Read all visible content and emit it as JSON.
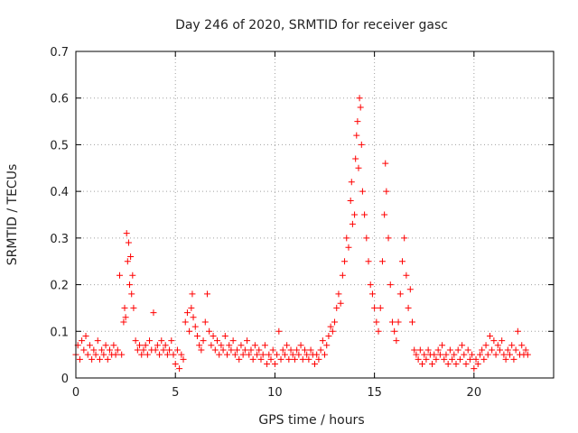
{
  "chart_data": {
    "type": "scatter",
    "title": "Day 246 of 2020, SRMTID for receiver gasc",
    "xlabel": "GPS time / hours",
    "ylabel": "SRMTID / TECUs",
    "xlim": [
      0,
      24
    ],
    "ylim": [
      0,
      0.7
    ],
    "xticks": [
      0,
      5,
      10,
      15,
      20
    ],
    "yticks": [
      0,
      0.1,
      0.2,
      0.3,
      0.4,
      0.5,
      0.6,
      0.7
    ],
    "xtick_labels": [
      "0",
      "5",
      "10",
      "15",
      "20"
    ],
    "ytick_labels": [
      "0",
      "0.1",
      "0.2",
      "0.3",
      "0.4",
      "0.5",
      "0.6",
      "0.7"
    ],
    "grid": true,
    "marker": "+",
    "color": "#ff0000",
    "series": [
      {
        "name": "SRMTID",
        "points": [
          [
            0.0,
            0.05
          ],
          [
            0.1,
            0.07
          ],
          [
            0.2,
            0.04
          ],
          [
            0.3,
            0.08
          ],
          [
            0.4,
            0.06
          ],
          [
            0.5,
            0.09
          ],
          [
            0.6,
            0.05
          ],
          [
            0.7,
            0.07
          ],
          [
            0.8,
            0.04
          ],
          [
            0.9,
            0.06
          ],
          [
            1.0,
            0.05
          ],
          [
            1.1,
            0.08
          ],
          [
            1.2,
            0.04
          ],
          [
            1.3,
            0.06
          ],
          [
            1.4,
            0.05
          ],
          [
            1.5,
            0.07
          ],
          [
            1.6,
            0.04
          ],
          [
            1.7,
            0.06
          ],
          [
            1.8,
            0.05
          ],
          [
            1.9,
            0.07
          ],
          [
            2.0,
            0.05
          ],
          [
            2.1,
            0.06
          ],
          [
            2.2,
            0.22
          ],
          [
            2.3,
            0.05
          ],
          [
            2.4,
            0.12
          ],
          [
            2.45,
            0.15
          ],
          [
            2.5,
            0.13
          ],
          [
            2.55,
            0.31
          ],
          [
            2.6,
            0.25
          ],
          [
            2.65,
            0.29
          ],
          [
            2.7,
            0.2
          ],
          [
            2.75,
            0.26
          ],
          [
            2.8,
            0.18
          ],
          [
            2.85,
            0.22
          ],
          [
            2.9,
            0.15
          ],
          [
            3.0,
            0.08
          ],
          [
            3.1,
            0.06
          ],
          [
            3.2,
            0.07
          ],
          [
            3.3,
            0.05
          ],
          [
            3.4,
            0.06
          ],
          [
            3.5,
            0.07
          ],
          [
            3.6,
            0.05
          ],
          [
            3.7,
            0.08
          ],
          [
            3.8,
            0.06
          ],
          [
            3.9,
            0.14
          ],
          [
            4.0,
            0.06
          ],
          [
            4.1,
            0.07
          ],
          [
            4.2,
            0.05
          ],
          [
            4.3,
            0.08
          ],
          [
            4.4,
            0.06
          ],
          [
            4.5,
            0.07
          ],
          [
            4.6,
            0.05
          ],
          [
            4.7,
            0.06
          ],
          [
            4.8,
            0.08
          ],
          [
            4.9,
            0.05
          ],
          [
            5.0,
            0.03
          ],
          [
            5.1,
            0.06
          ],
          [
            5.2,
            0.02
          ],
          [
            5.3,
            0.05
          ],
          [
            5.4,
            0.04
          ],
          [
            5.5,
            0.12
          ],
          [
            5.6,
            0.14
          ],
          [
            5.7,
            0.1
          ],
          [
            5.8,
            0.15
          ],
          [
            5.85,
            0.18
          ],
          [
            5.9,
            0.13
          ],
          [
            6.0,
            0.11
          ],
          [
            6.1,
            0.09
          ],
          [
            6.2,
            0.07
          ],
          [
            6.3,
            0.06
          ],
          [
            6.4,
            0.08
          ],
          [
            6.5,
            0.12
          ],
          [
            6.6,
            0.18
          ],
          [
            6.7,
            0.1
          ],
          [
            6.8,
            0.07
          ],
          [
            6.9,
            0.09
          ],
          [
            7.0,
            0.06
          ],
          [
            7.1,
            0.08
          ],
          [
            7.2,
            0.05
          ],
          [
            7.3,
            0.07
          ],
          [
            7.4,
            0.06
          ],
          [
            7.5,
            0.09
          ],
          [
            7.6,
            0.05
          ],
          [
            7.7,
            0.07
          ],
          [
            7.8,
            0.06
          ],
          [
            7.9,
            0.08
          ],
          [
            8.0,
            0.05
          ],
          [
            8.1,
            0.06
          ],
          [
            8.2,
            0.04
          ],
          [
            8.3,
            0.07
          ],
          [
            8.4,
            0.05
          ],
          [
            8.5,
            0.06
          ],
          [
            8.6,
            0.08
          ],
          [
            8.7,
            0.05
          ],
          [
            8.8,
            0.06
          ],
          [
            8.9,
            0.04
          ],
          [
            9.0,
            0.07
          ],
          [
            9.1,
            0.05
          ],
          [
            9.2,
            0.06
          ],
          [
            9.3,
            0.04
          ],
          [
            9.4,
            0.05
          ],
          [
            9.5,
            0.07
          ],
          [
            9.6,
            0.03
          ],
          [
            9.7,
            0.05
          ],
          [
            9.8,
            0.04
          ],
          [
            9.9,
            0.06
          ],
          [
            10.0,
            0.03
          ],
          [
            10.1,
            0.05
          ],
          [
            10.2,
            0.1
          ],
          [
            10.3,
            0.04
          ],
          [
            10.4,
            0.06
          ],
          [
            10.5,
            0.05
          ],
          [
            10.6,
            0.07
          ],
          [
            10.7,
            0.04
          ],
          [
            10.8,
            0.06
          ],
          [
            10.9,
            0.05
          ],
          [
            11.0,
            0.04
          ],
          [
            11.1,
            0.06
          ],
          [
            11.2,
            0.05
          ],
          [
            11.3,
            0.07
          ],
          [
            11.4,
            0.04
          ],
          [
            11.5,
            0.06
          ],
          [
            11.6,
            0.05
          ],
          [
            11.7,
            0.04
          ],
          [
            11.8,
            0.06
          ],
          [
            11.9,
            0.05
          ],
          [
            12.0,
            0.03
          ],
          [
            12.1,
            0.05
          ],
          [
            12.2,
            0.04
          ],
          [
            12.3,
            0.06
          ],
          [
            12.4,
            0.08
          ],
          [
            12.5,
            0.05
          ],
          [
            12.6,
            0.07
          ],
          [
            12.7,
            0.09
          ],
          [
            12.8,
            0.11
          ],
          [
            12.9,
            0.1
          ],
          [
            13.0,
            0.12
          ],
          [
            13.1,
            0.15
          ],
          [
            13.2,
            0.18
          ],
          [
            13.3,
            0.16
          ],
          [
            13.4,
            0.22
          ],
          [
            13.5,
            0.25
          ],
          [
            13.6,
            0.3
          ],
          [
            13.7,
            0.28
          ],
          [
            13.8,
            0.38
          ],
          [
            13.85,
            0.42
          ],
          [
            13.9,
            0.33
          ],
          [
            14.0,
            0.35
          ],
          [
            14.05,
            0.47
          ],
          [
            14.1,
            0.52
          ],
          [
            14.15,
            0.55
          ],
          [
            14.2,
            0.45
          ],
          [
            14.25,
            0.6
          ],
          [
            14.3,
            0.58
          ],
          [
            14.35,
            0.5
          ],
          [
            14.4,
            0.4
          ],
          [
            14.5,
            0.35
          ],
          [
            14.6,
            0.3
          ],
          [
            14.7,
            0.25
          ],
          [
            14.8,
            0.2
          ],
          [
            14.9,
            0.18
          ],
          [
            15.0,
            0.15
          ],
          [
            15.1,
            0.12
          ],
          [
            15.2,
            0.1
          ],
          [
            15.3,
            0.15
          ],
          [
            15.4,
            0.25
          ],
          [
            15.5,
            0.35
          ],
          [
            15.55,
            0.46
          ],
          [
            15.6,
            0.4
          ],
          [
            15.7,
            0.3
          ],
          [
            15.8,
            0.2
          ],
          [
            15.9,
            0.12
          ],
          [
            16.0,
            0.1
          ],
          [
            16.1,
            0.08
          ],
          [
            16.2,
            0.12
          ],
          [
            16.3,
            0.18
          ],
          [
            16.4,
            0.25
          ],
          [
            16.5,
            0.3
          ],
          [
            16.6,
            0.22
          ],
          [
            16.7,
            0.15
          ],
          [
            16.8,
            0.19
          ],
          [
            16.9,
            0.12
          ],
          [
            17.0,
            0.06
          ],
          [
            17.1,
            0.05
          ],
          [
            17.2,
            0.04
          ],
          [
            17.3,
            0.06
          ],
          [
            17.4,
            0.03
          ],
          [
            17.5,
            0.05
          ],
          [
            17.6,
            0.04
          ],
          [
            17.7,
            0.06
          ],
          [
            17.8,
            0.05
          ],
          [
            17.9,
            0.03
          ],
          [
            18.0,
            0.05
          ],
          [
            18.1,
            0.04
          ],
          [
            18.2,
            0.06
          ],
          [
            18.3,
            0.05
          ],
          [
            18.4,
            0.07
          ],
          [
            18.5,
            0.04
          ],
          [
            18.6,
            0.05
          ],
          [
            18.7,
            0.03
          ],
          [
            18.8,
            0.06
          ],
          [
            18.9,
            0.04
          ],
          [
            19.0,
            0.05
          ],
          [
            19.1,
            0.03
          ],
          [
            19.2,
            0.06
          ],
          [
            19.3,
            0.04
          ],
          [
            19.4,
            0.07
          ],
          [
            19.5,
            0.05
          ],
          [
            19.6,
            0.03
          ],
          [
            19.7,
            0.06
          ],
          [
            19.8,
            0.04
          ],
          [
            19.9,
            0.05
          ],
          [
            20.0,
            0.02
          ],
          [
            20.1,
            0.04
          ],
          [
            20.2,
            0.03
          ],
          [
            20.3,
            0.05
          ],
          [
            20.4,
            0.06
          ],
          [
            20.5,
            0.04
          ],
          [
            20.6,
            0.07
          ],
          [
            20.7,
            0.05
          ],
          [
            20.8,
            0.09
          ],
          [
            20.9,
            0.06
          ],
          [
            21.0,
            0.08
          ],
          [
            21.1,
            0.05
          ],
          [
            21.2,
            0.07
          ],
          [
            21.3,
            0.06
          ],
          [
            21.4,
            0.08
          ],
          [
            21.5,
            0.05
          ],
          [
            21.6,
            0.04
          ],
          [
            21.7,
            0.06
          ],
          [
            21.8,
            0.05
          ],
          [
            21.9,
            0.07
          ],
          [
            22.0,
            0.04
          ],
          [
            22.1,
            0.06
          ],
          [
            22.2,
            0.1
          ],
          [
            22.3,
            0.05
          ],
          [
            22.4,
            0.07
          ],
          [
            22.5,
            0.05
          ],
          [
            22.6,
            0.06
          ],
          [
            22.7,
            0.05
          ]
        ]
      }
    ]
  }
}
